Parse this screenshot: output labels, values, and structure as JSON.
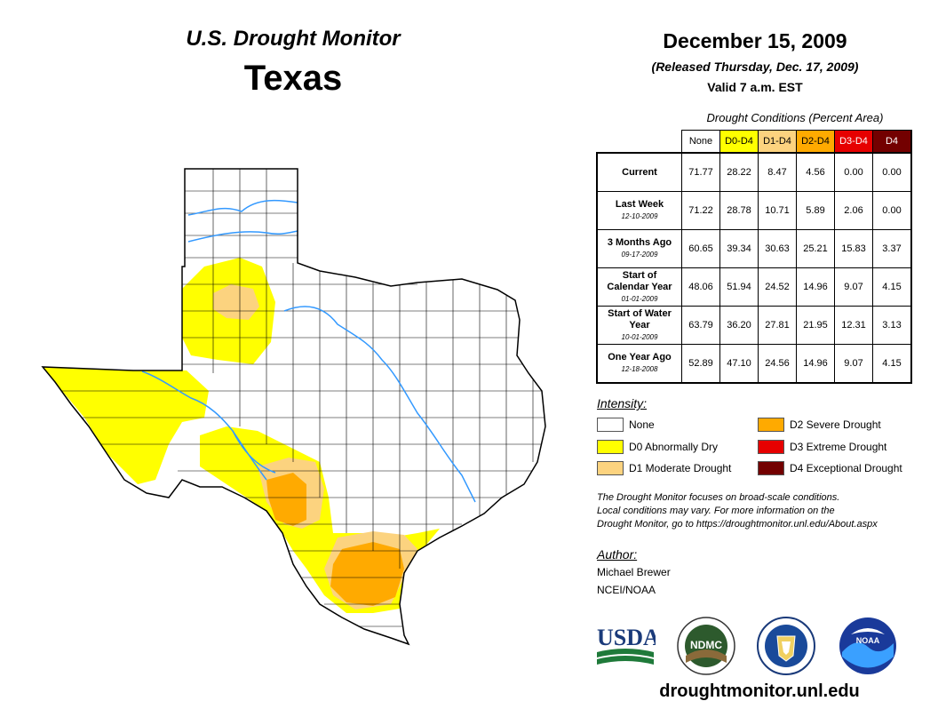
{
  "header": {
    "product": "U.S. Drought Monitor",
    "state": "Texas",
    "date": "December 15, 2009",
    "released": "(Released Thursday, Dec. 17, 2009)",
    "valid": "Valid 7 a.m. EST"
  },
  "conditions": {
    "title": "Drought Conditions (Percent Area)",
    "columns": [
      {
        "label": "None",
        "color": "#ffffff",
        "text_color": "#000000"
      },
      {
        "label": "D0-D4",
        "color": "#ffff00",
        "text_color": "#000000"
      },
      {
        "label": "D1-D4",
        "color": "#fcd37f",
        "text_color": "#000000"
      },
      {
        "label": "D2-D4",
        "color": "#ffaa00",
        "text_color": "#000000"
      },
      {
        "label": "D3-D4",
        "color": "#e60000",
        "text_color": "#ffffff"
      },
      {
        "label": "D4",
        "color": "#730000",
        "text_color": "#ffffff"
      }
    ],
    "rows": [
      {
        "label": "Current",
        "date": "",
        "values": [
          "71.77",
          "28.22",
          "8.47",
          "4.56",
          "0.00",
          "0.00"
        ]
      },
      {
        "label": "Last Week",
        "date": "12-10-2009",
        "values": [
          "71.22",
          "28.78",
          "10.71",
          "5.89",
          "2.06",
          "0.00"
        ]
      },
      {
        "label": "3 Months Ago",
        "date": "09-17-2009",
        "values": [
          "60.65",
          "39.34",
          "30.63",
          "25.21",
          "15.83",
          "3.37"
        ]
      },
      {
        "label": "Start of Calendar Year",
        "date": "01-01-2009",
        "values": [
          "48.06",
          "51.94",
          "24.52",
          "14.96",
          "9.07",
          "4.15"
        ]
      },
      {
        "label": "Start of Water Year",
        "date": "10-01-2009",
        "values": [
          "63.79",
          "36.20",
          "27.81",
          "21.95",
          "12.31",
          "3.13"
        ]
      },
      {
        "label": "One Year Ago",
        "date": "12-18-2008",
        "values": [
          "52.89",
          "47.10",
          "24.56",
          "14.96",
          "9.07",
          "4.15"
        ]
      }
    ]
  },
  "legend": {
    "title": "Intensity:",
    "items": [
      {
        "label": "None",
        "color": "#ffffff"
      },
      {
        "label": "D0 Abnormally Dry",
        "color": "#ffff00"
      },
      {
        "label": "D1 Moderate Drought",
        "color": "#fcd37f"
      },
      {
        "label": "D2 Severe Drought",
        "color": "#ffaa00"
      },
      {
        "label": "D3 Extreme Drought",
        "color": "#e60000"
      },
      {
        "label": "D4 Exceptional Drought",
        "color": "#730000"
      }
    ]
  },
  "note": {
    "line1": "The Drought Monitor focuses on broad-scale conditions.",
    "line2": "Local conditions may vary. For more information on the",
    "line3": "Drought Monitor, go to https://droughtmonitor.unl.edu/About.aspx"
  },
  "author": {
    "title": "Author:",
    "name": "Michael Brewer",
    "org": "NCEI/NOAA"
  },
  "logos": {
    "usda": "USDA",
    "ndmc": "NDMC",
    "noaa": "NOAA"
  },
  "footer_url": "droughtmonitor.unl.edu",
  "map_colors": {
    "d0": "#ffff00",
    "d1": "#fcd37f",
    "d2": "#ffaa00",
    "rivers": "#3399ff",
    "border": "#000000"
  }
}
